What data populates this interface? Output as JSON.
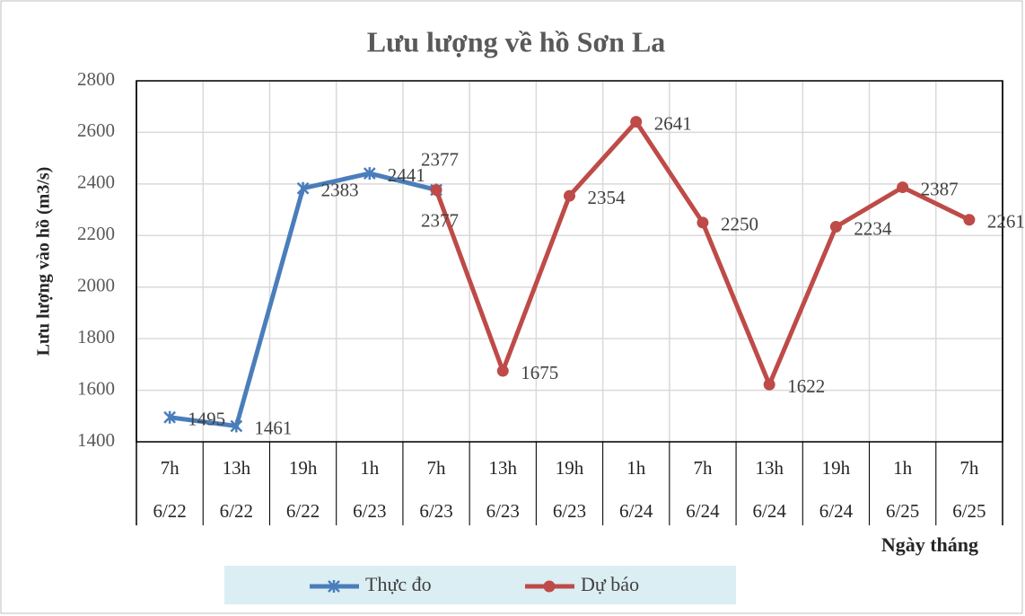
{
  "chart_data": {
    "type": "line",
    "title": "Lưu lượng về hồ Sơn La",
    "y_label": "Lưu lượng vào hồ (m3/s)",
    "x_label": "Ngày tháng",
    "categories": [
      "7h",
      "13h",
      "19h",
      "1h",
      "7h",
      "13h",
      "19h",
      "1h",
      "7h",
      "13h",
      "19h",
      "1h",
      "7h"
    ],
    "category_dates": [
      "6/22",
      "6/22",
      "6/22",
      "6/23",
      "6/23",
      "6/23",
      "6/23",
      "6/24",
      "6/24",
      "6/24",
      "6/24",
      "6/25",
      "6/25"
    ],
    "series": [
      {
        "name": "Thực đo",
        "color": "#4a7ebb",
        "marker": "star",
        "values": [
          1495,
          1461,
          2383,
          2441,
          2377,
          null,
          null,
          null,
          null,
          null,
          null,
          null,
          null
        ]
      },
      {
        "name": "Dự báo",
        "color": "#be4b48",
        "marker": "circle",
        "values": [
          null,
          null,
          null,
          null,
          2377,
          1675,
          2354,
          2641,
          2250,
          1622,
          2234,
          2387,
          2261
        ]
      }
    ],
    "ylim": [
      1400,
      2800
    ],
    "yticks": [
      1400,
      1600,
      1800,
      2000,
      2200,
      2400,
      2600,
      2800
    ],
    "grid": true,
    "legend": "bottom"
  }
}
